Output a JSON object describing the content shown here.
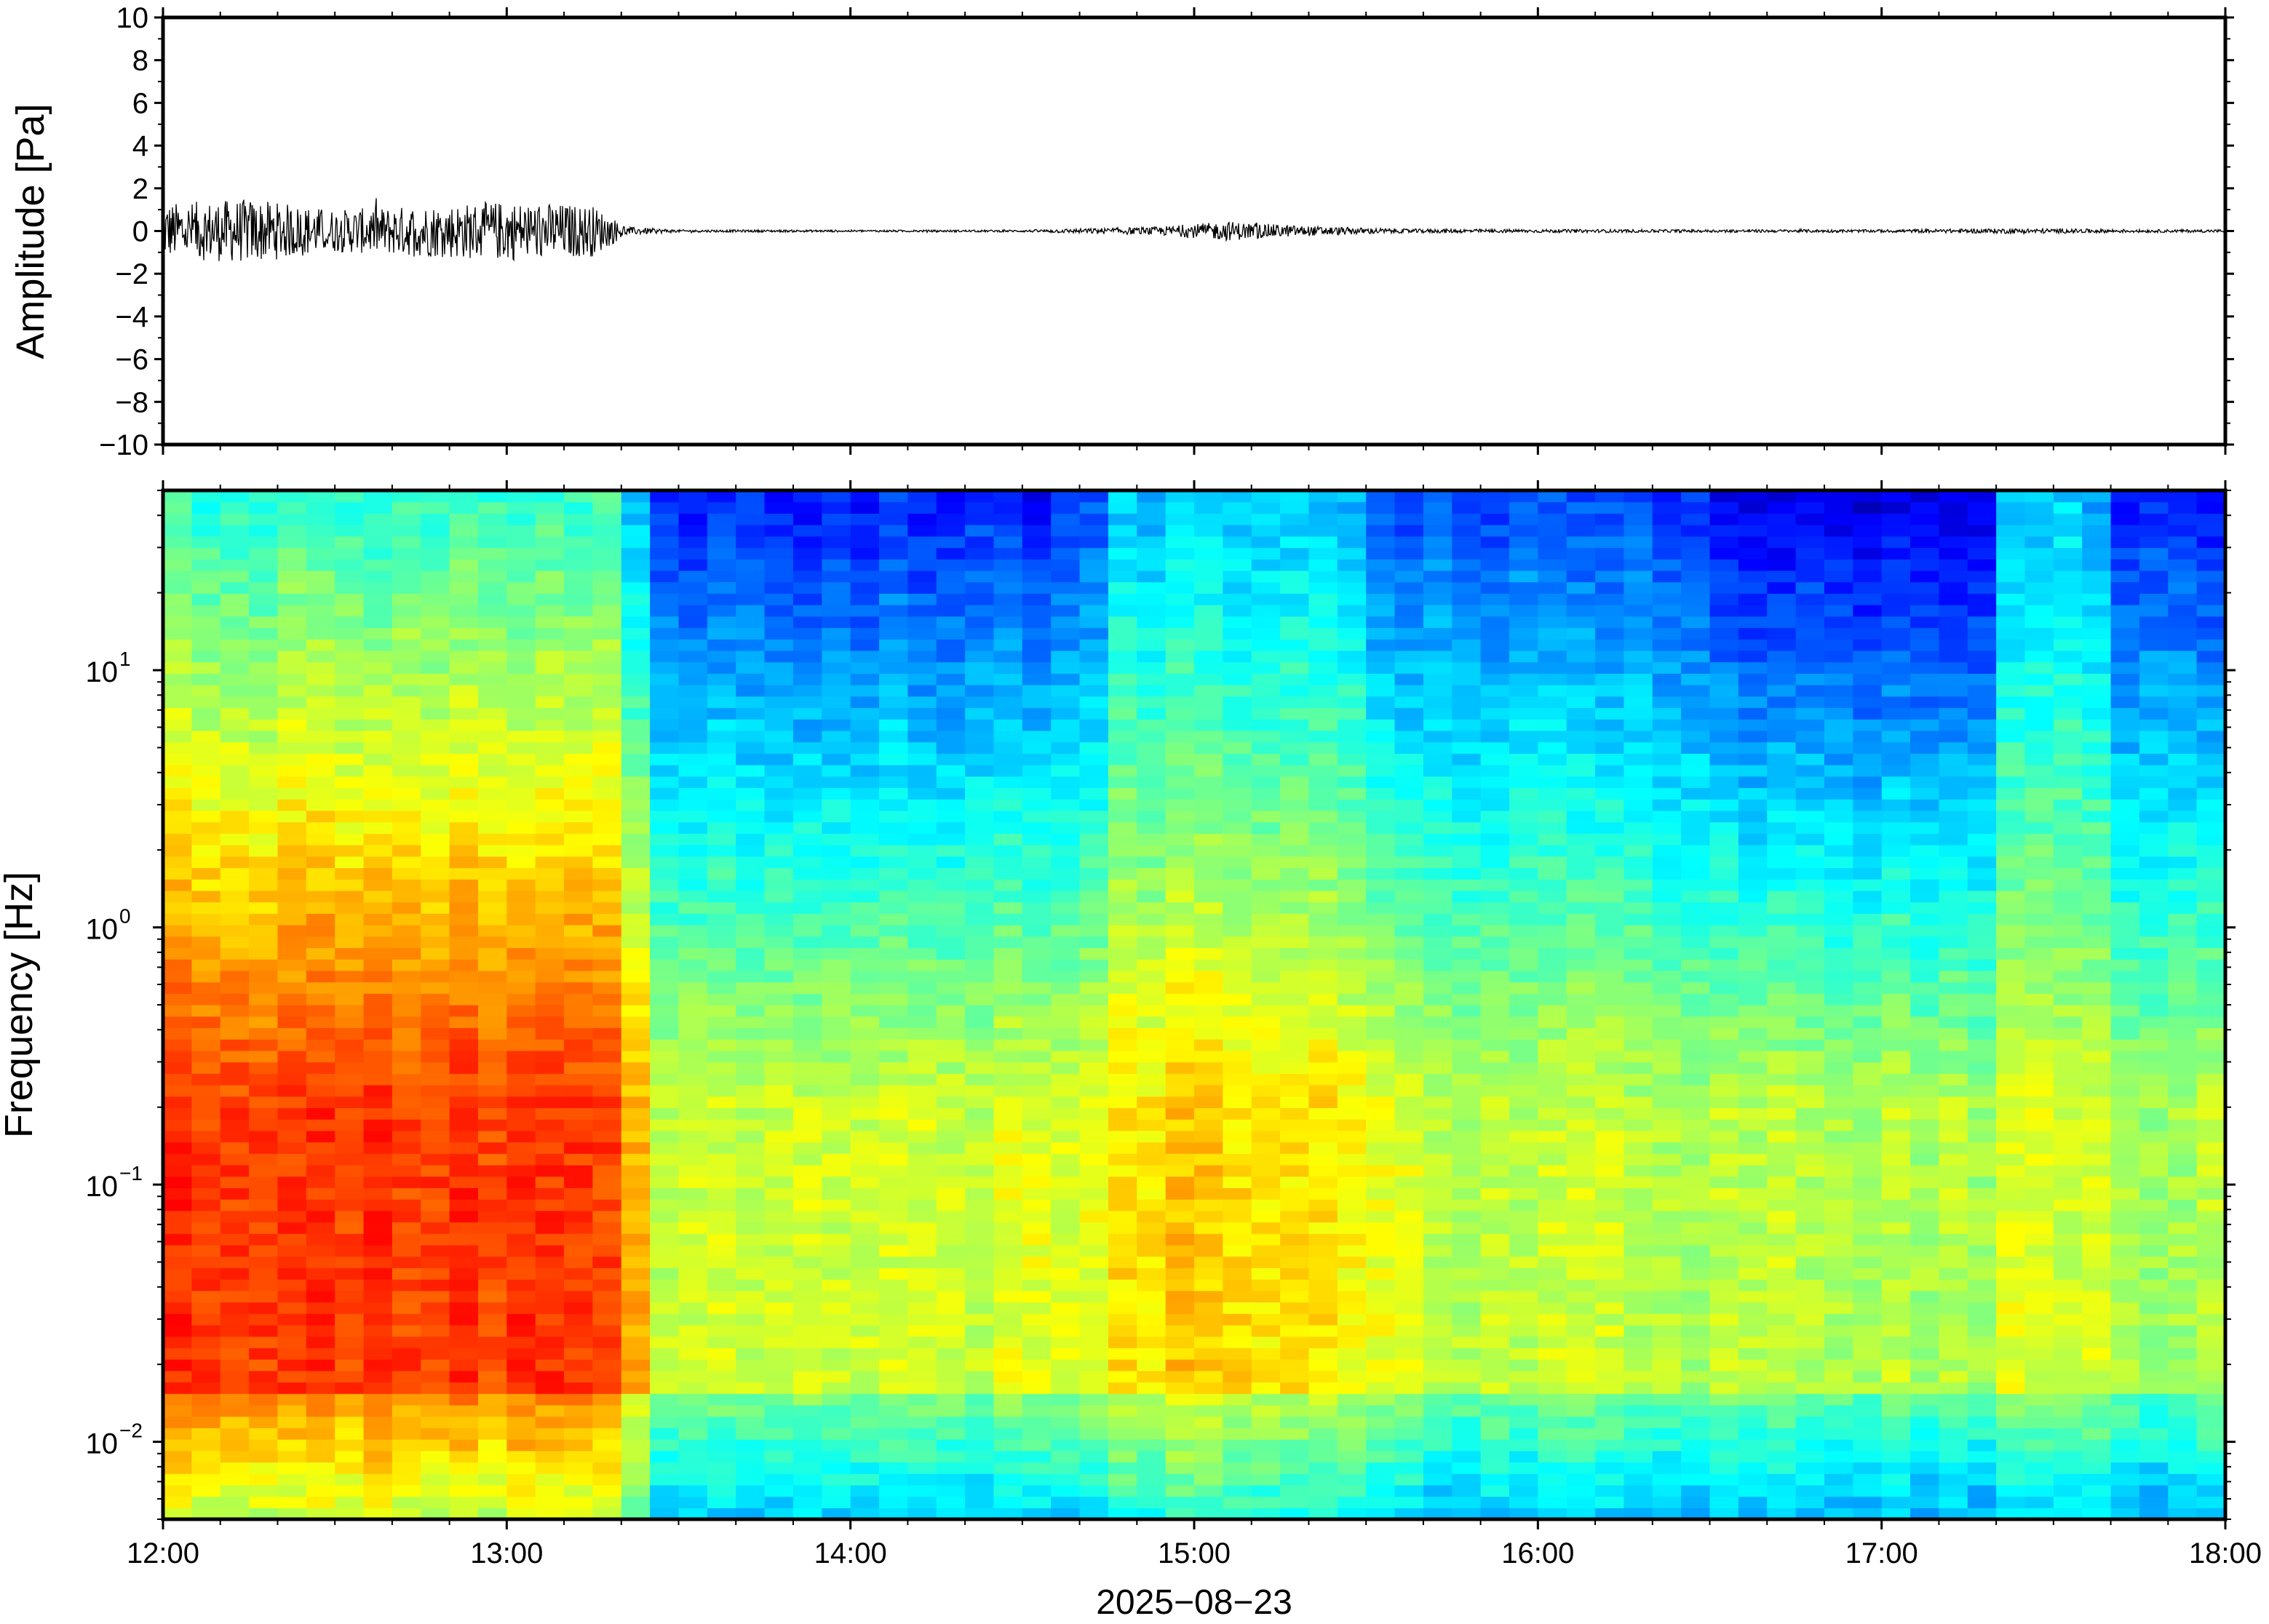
{
  "chart_data": [
    {
      "type": "line",
      "ylabel": "Amplitude [Pa]",
      "ylim": [
        -10,
        10
      ],
      "yticks": [
        "10",
        "8",
        "6",
        "4",
        "2",
        "0",
        "−2",
        "−4",
        "−6",
        "−8",
        "−10"
      ],
      "grid": false,
      "series": [
        {
          "x_hours": [
            12.0,
            12.25,
            12.5,
            12.75,
            13.0,
            13.25,
            13.35,
            13.5,
            14.0,
            14.5,
            14.9,
            15.1,
            15.3,
            15.6,
            16.0,
            16.5,
            17.0,
            17.4,
            17.8,
            18.0
          ],
          "envelope_pa": [
            1.3,
            1.5,
            1.0,
            1.2,
            1.4,
            1.2,
            0.2,
            0.06,
            0.05,
            0.05,
            0.2,
            0.45,
            0.25,
            0.1,
            0.08,
            0.07,
            0.07,
            0.12,
            0.07,
            0.07
          ]
        }
      ]
    },
    {
      "type": "heatmap",
      "ylabel": "Frequency [Hz]",
      "yscale": "log",
      "ylim": [
        0.005,
        50
      ],
      "yticks": [
        {
          "base": "10",
          "exp": "1",
          "value": 10
        },
        {
          "base": "10",
          "exp": "0",
          "value": 1
        },
        {
          "base": "10",
          "exp": "−1",
          "value": 0.1
        },
        {
          "base": "10",
          "exp": "−2",
          "value": 0.01
        }
      ],
      "xlim": [
        "12:00",
        "18:00"
      ],
      "xticks": [
        "12:00",
        "13:00",
        "14:00",
        "15:00",
        "16:00",
        "17:00",
        "18:00"
      ],
      "xlabel": "2025−08−23",
      "colormap": "jet",
      "colormap_colors": [
        "#00007f",
        "#0000ff",
        "#007fff",
        "#00ffff",
        "#7fff7f",
        "#ffff00",
        "#ff7f00",
        "#ff0000",
        "#7f0000"
      ],
      "time_profile_hours": [
        12.0,
        13.35,
        13.4,
        14.7,
        14.75,
        15.0,
        15.5,
        15.55,
        16.5,
        16.55,
        17.3,
        17.35,
        17.65,
        17.7,
        18.0
      ],
      "time_profile_high_freq_level": [
        0.42,
        0.42,
        0.15,
        0.15,
        0.3,
        0.32,
        0.3,
        0.2,
        0.18,
        0.1,
        0.1,
        0.32,
        0.3,
        0.15,
        0.15
      ],
      "time_profile_low_freq_level": [
        0.82,
        0.82,
        0.58,
        0.58,
        0.62,
        0.68,
        0.62,
        0.58,
        0.55,
        0.55,
        0.55,
        0.58,
        0.58,
        0.55,
        0.55
      ]
    }
  ]
}
